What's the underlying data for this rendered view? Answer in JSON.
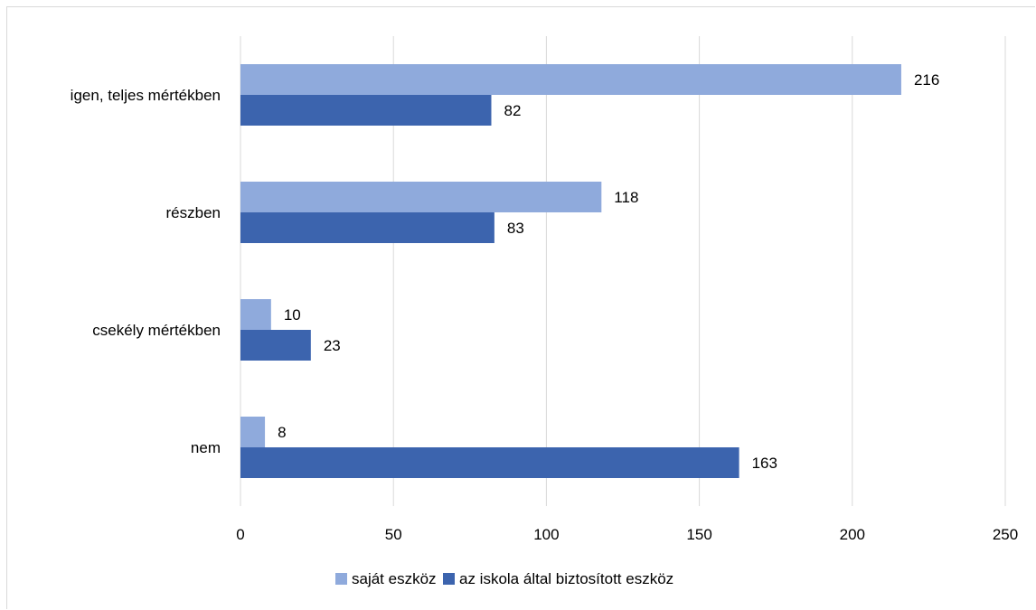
{
  "chart_data": {
    "type": "bar",
    "orientation": "horizontal",
    "categories": [
      "igen, teljes mértékben",
      "részben",
      "csekély mértékben",
      "nem"
    ],
    "series": [
      {
        "name": "saját eszköz",
        "color": "#8faadc",
        "values": [
          216,
          118,
          10,
          8
        ]
      },
      {
        "name": "az iskola által biztosított eszköz",
        "color": "#3c64ae",
        "values": [
          82,
          83,
          23,
          163
        ]
      }
    ],
    "xlim": [
      0,
      250
    ],
    "xticks": [
      0,
      50,
      100,
      150,
      200,
      250
    ],
    "grid": true,
    "legend": "bottom",
    "title": "",
    "xlabel": "",
    "ylabel": ""
  }
}
